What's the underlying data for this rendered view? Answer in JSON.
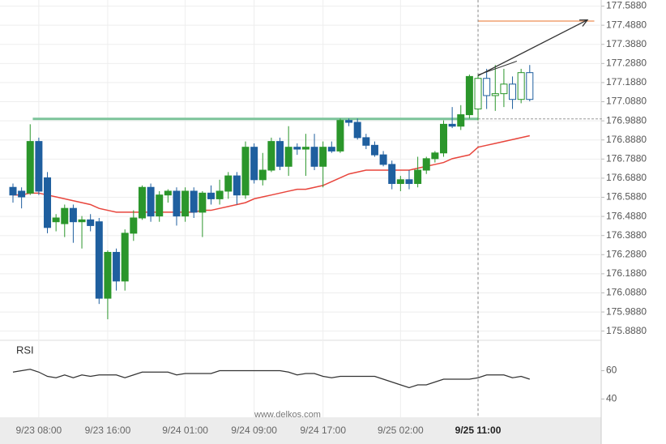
{
  "chart_data": {
    "type": "candlestick",
    "categories": [
      null,
      null,
      null,
      "9/23 08:00",
      null,
      null,
      null,
      null,
      null,
      null,
      null,
      "9/23 16:00",
      null,
      null,
      null,
      null,
      null,
      null,
      null,
      null,
      "9/24 01:00",
      null,
      null,
      null,
      null,
      null,
      null,
      null,
      "9/24 09:00",
      null,
      null,
      null,
      null,
      null,
      null,
      null,
      "9/24 17:00",
      null,
      null,
      null,
      null,
      null,
      null,
      null,
      null,
      "9/25 02:00",
      null,
      null,
      null,
      null,
      null,
      null,
      null,
      null,
      "9/25 11:00",
      null,
      null,
      null,
      null,
      null,
      null
    ],
    "open": [
      176.64,
      176.62,
      176.61,
      176.88,
      176.69,
      176.46,
      176.45,
      176.53,
      176.46,
      176.47,
      176.46,
      176.06,
      176.3,
      176.15,
      176.4,
      176.48,
      176.64,
      176.49,
      176.6,
      176.62,
      176.49,
      176.62,
      176.51,
      176.61,
      176.58,
      176.62,
      176.7,
      176.6,
      176.85,
      176.68,
      176.73,
      176.88,
      176.75,
      176.85,
      176.84,
      176.85,
      176.75,
      176.85,
      176.83,
      176.99,
      176.98,
      176.9,
      176.86,
      176.81,
      176.76,
      176.66,
      176.68,
      176.66,
      176.73,
      176.79,
      176.82,
      176.97,
      176.96,
      177.02,
      177.05,
      177.21,
      177.12,
      177.13,
      177.18,
      177.1,
      177.24
    ],
    "high": [
      176.66,
      176.64,
      176.97,
      176.9,
      176.72,
      176.5,
      176.55,
      176.55,
      176.49,
      176.5,
      176.48,
      176.31,
      176.32,
      176.42,
      176.52,
      176.65,
      176.66,
      176.62,
      176.63,
      176.64,
      176.64,
      176.64,
      176.62,
      176.65,
      176.68,
      176.72,
      176.72,
      176.88,
      176.87,
      176.82,
      176.9,
      176.9,
      176.96,
      176.87,
      176.92,
      176.92,
      176.88,
      176.88,
      177.0,
      177.0,
      177.0,
      176.92,
      176.88,
      176.83,
      176.78,
      176.7,
      176.73,
      176.8,
      176.8,
      176.83,
      176.99,
      177.06,
      177.07,
      177.23,
      177.23,
      177.26,
      177.28,
      177.26,
      177.22,
      177.26,
      177.28
    ],
    "low": [
      176.56,
      176.53,
      176.6,
      176.6,
      176.4,
      176.41,
      176.38,
      176.35,
      176.32,
      176.41,
      176.03,
      175.95,
      176.1,
      176.1,
      176.36,
      176.47,
      176.46,
      176.46,
      176.56,
      176.44,
      176.46,
      176.48,
      176.38,
      176.55,
      176.55,
      176.58,
      176.55,
      176.58,
      176.66,
      176.65,
      176.72,
      176.73,
      176.7,
      176.81,
      176.7,
      176.73,
      176.64,
      176.82,
      176.82,
      176.96,
      176.89,
      176.84,
      176.8,
      176.75,
      176.63,
      176.62,
      176.63,
      176.64,
      176.71,
      176.77,
      176.8,
      176.95,
      176.94,
      177.0,
      176.99,
      177.05,
      177.04,
      177.06,
      177.05,
      177.08,
      177.09
    ],
    "close": [
      176.6,
      176.59,
      176.88,
      176.62,
      176.43,
      176.48,
      176.53,
      176.46,
      176.47,
      176.44,
      176.06,
      176.3,
      176.15,
      176.4,
      176.48,
      176.64,
      176.49,
      176.6,
      176.62,
      176.49,
      176.62,
      176.51,
      176.61,
      176.58,
      176.62,
      176.7,
      176.6,
      176.85,
      176.68,
      176.73,
      176.88,
      176.75,
      176.85,
      176.84,
      176.85,
      176.75,
      176.85,
      176.83,
      176.99,
      176.98,
      176.9,
      176.86,
      176.81,
      176.76,
      176.66,
      176.68,
      176.66,
      176.73,
      176.79,
      176.82,
      176.97,
      176.96,
      177.02,
      177.22,
      177.21,
      177.12,
      177.13,
      177.18,
      177.1,
      177.24,
      177.1
    ],
    "up_color": "#2b962b",
    "down_color": "#1f5f9f",
    "ylim": [
      175.84,
      177.62
    ],
    "yticks": [
      {
        "value": 177.588,
        "label": "177.5880"
      },
      {
        "value": 177.488,
        "label": "177.4880"
      },
      {
        "value": 177.388,
        "label": "177.3880"
      },
      {
        "value": 177.288,
        "label": "177.2880"
      },
      {
        "value": 177.188,
        "label": "177.1880"
      },
      {
        "value": 177.088,
        "label": "177.0880"
      },
      {
        "value": 176.988,
        "label": "176.9880"
      },
      {
        "value": 176.888,
        "label": "176.8880"
      },
      {
        "value": 176.788,
        "label": "176.7880"
      },
      {
        "value": 176.688,
        "label": "176.6880"
      },
      {
        "value": 176.588,
        "label": "176.5880"
      },
      {
        "value": 176.488,
        "label": "176.4880"
      },
      {
        "value": 176.388,
        "label": "176.3880"
      },
      {
        "value": 176.288,
        "label": "176.2880"
      },
      {
        "value": 176.188,
        "label": "176.1880"
      },
      {
        "value": 176.088,
        "label": "176.0880"
      },
      {
        "value": 175.988,
        "label": "175.9880"
      },
      {
        "value": 175.888,
        "label": "175.8880"
      }
    ],
    "grid": true,
    "ma": {
      "color": "#e8453c",
      "values": [
        176.6,
        176.6,
        176.61,
        176.61,
        176.6,
        176.59,
        176.58,
        176.57,
        176.56,
        176.55,
        176.53,
        176.52,
        176.51,
        176.51,
        176.51,
        176.51,
        176.51,
        176.51,
        176.51,
        176.51,
        176.51,
        176.51,
        176.52,
        176.52,
        176.53,
        176.54,
        176.55,
        176.56,
        176.58,
        176.59,
        176.6,
        176.61,
        176.62,
        176.63,
        176.63,
        176.64,
        176.65,
        176.67,
        176.69,
        176.71,
        176.72,
        176.73,
        176.73,
        176.73,
        176.73,
        176.73,
        176.73,
        176.74,
        176.75,
        176.76,
        176.77,
        176.79,
        176.8,
        176.81,
        176.85,
        176.86,
        176.87,
        176.88,
        176.89,
        176.9,
        176.91
      ]
    },
    "levels": [
      {
        "value": 176.998,
        "from": 2.3,
        "to": 54,
        "color": "#7cc49a",
        "width": 3
      },
      {
        "value": 176.998,
        "from": 54,
        "to": 68.6,
        "color": "#999999",
        "width": 1,
        "dash": true
      },
      {
        "value": 177.51,
        "from": 54,
        "to": 67.5,
        "color": "#f0a070",
        "width": 1.5
      }
    ],
    "trend": {
      "x": [
        54,
        58.5
      ],
      "y": [
        177.228,
        177.3
      ],
      "color": "#333333"
    },
    "arrow": {
      "x": [
        54,
        66.7
      ],
      "y": [
        177.224,
        177.516
      ],
      "color": "#333333"
    },
    "marker_index": 54,
    "rsi": {
      "label": "RSI",
      "color": "#333333",
      "ylim": [
        30,
        80
      ],
      "yticks": [
        60,
        40
      ],
      "values": [
        59,
        60,
        61,
        59,
        56,
        55,
        57,
        55,
        57,
        56,
        57,
        57,
        57,
        55,
        57,
        59,
        59,
        59,
        59,
        57,
        58,
        58,
        58,
        58,
        60,
        60,
        60,
        60,
        60,
        60,
        60,
        60,
        59,
        57,
        58,
        58,
        56,
        55,
        56,
        56,
        56,
        56,
        56,
        54,
        52,
        50,
        48,
        50,
        50,
        52,
        54,
        54,
        54,
        54,
        55,
        57,
        57,
        57,
        55,
        56,
        54
      ]
    },
    "watermark": "www.delkos.com"
  }
}
